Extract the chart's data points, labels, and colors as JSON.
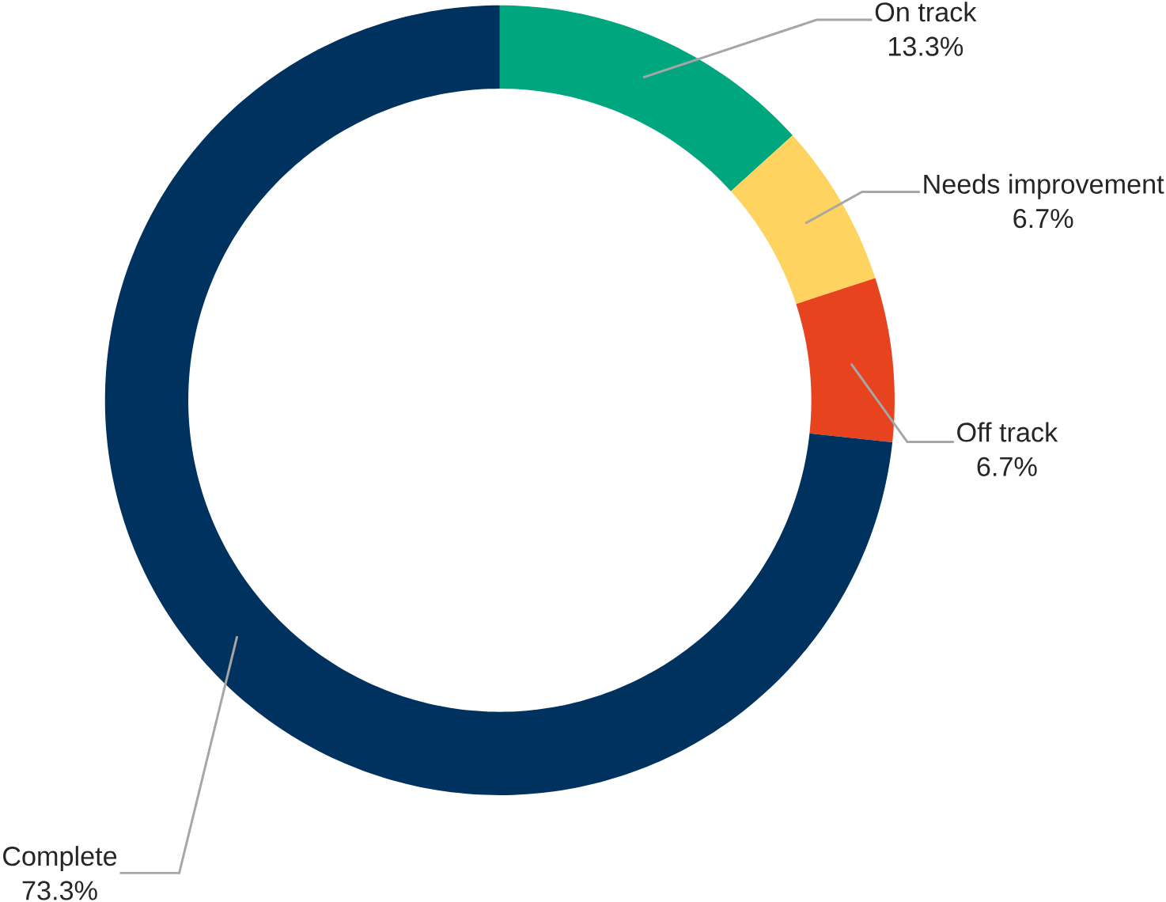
{
  "chart_data": {
    "type": "donut",
    "categories": [
      "On track",
      "Needs improvement",
      "Off track",
      "Complete"
    ],
    "values": [
      13.3,
      6.7,
      6.7,
      73.3
    ],
    "colors": [
      "#00a77e",
      "#ffd35f",
      "#e8431f",
      "#003260"
    ],
    "value_labels": [
      "13.3%",
      "6.7%",
      "6.7%",
      "73.3%"
    ]
  }
}
